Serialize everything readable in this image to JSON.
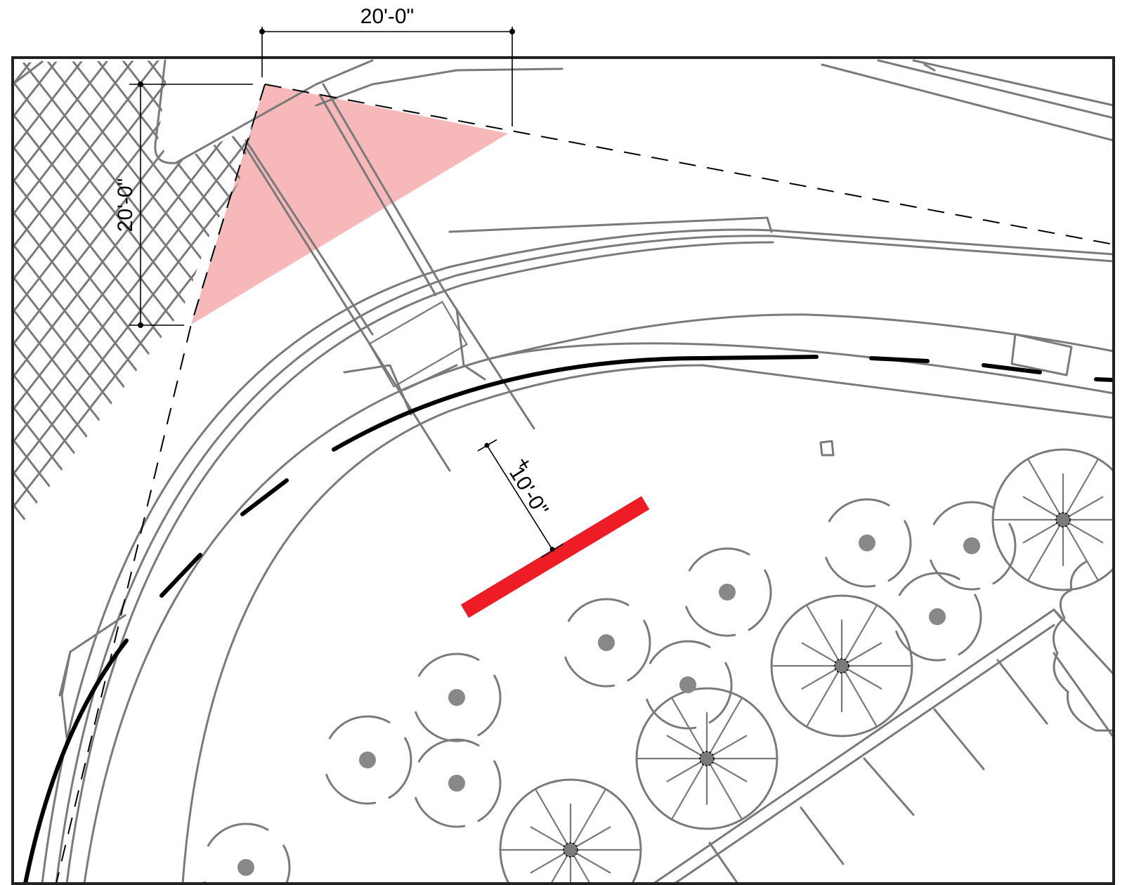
{
  "dimensions": {
    "top": "20'-0\"",
    "left": "20'-0\"",
    "setback": "10'-0\"",
    "setback_prefix": "+"
  },
  "colors": {
    "sight_triangle": "#f4a6a8",
    "barrier": "#ee1c24",
    "linework": "#7a7a7a",
    "frame": "#222222"
  }
}
